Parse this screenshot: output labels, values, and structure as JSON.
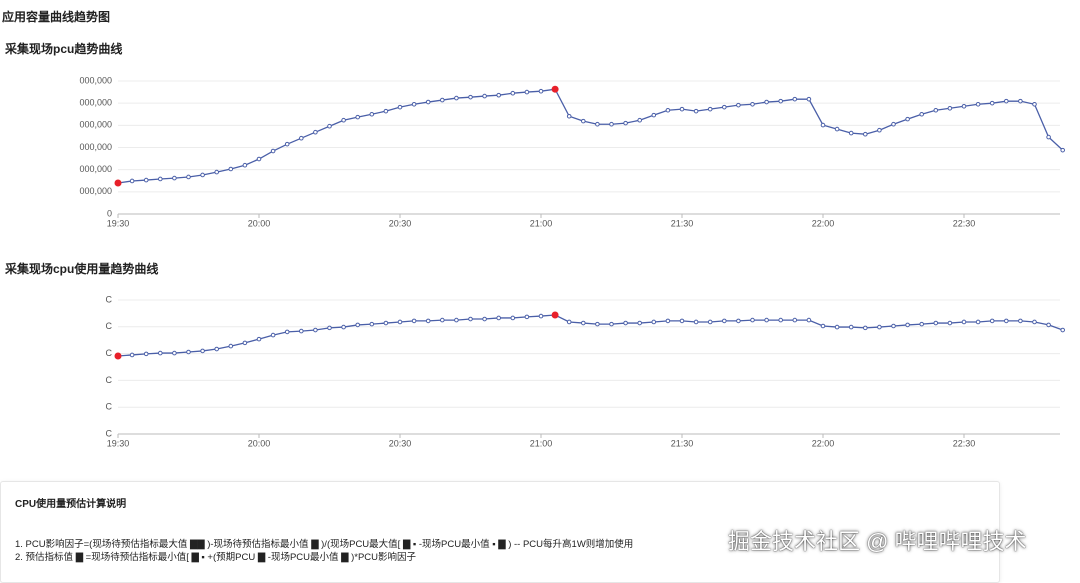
{
  "page_title": "应用容量曲线趋势图",
  "chart_data": [
    {
      "type": "line",
      "title": "采集现场pcu趋势曲线",
      "color": "#4a5fa8",
      "highlight_color": "#e8202a",
      "highlights": [
        0,
        31
      ],
      "grid": true,
      "categories": [
        "19:30",
        null,
        null,
        null,
        null,
        null,
        null,
        null,
        null,
        null,
        "20:00",
        null,
        null,
        null,
        null,
        null,
        null,
        null,
        null,
        null,
        "20:30",
        null,
        null,
        null,
        null,
        null,
        null,
        null,
        null,
        null,
        "21:00",
        null,
        null,
        null,
        null,
        null,
        null,
        null,
        null,
        null,
        "21:30",
        null,
        null,
        null,
        null,
        null,
        null,
        null,
        null,
        null,
        "22:00",
        null,
        null,
        null,
        null,
        null,
        null,
        null,
        null,
        null,
        "22:30",
        null,
        null,
        null,
        null,
        null,
        null,
        null
      ],
      "series": [
        {
          "values": [
            1.4,
            1.49,
            1.53,
            1.58,
            1.62,
            1.67,
            1.76,
            1.89,
            2.03,
            2.2,
            2.48,
            2.84,
            3.15,
            3.42,
            3.69,
            3.96,
            4.23,
            4.37,
            4.5,
            4.64,
            4.82,
            4.95,
            5.05,
            5.14,
            5.23,
            5.27,
            5.32,
            5.36,
            5.45,
            5.5,
            5.54,
            5.63,
            4.41,
            4.19,
            4.05,
            4.05,
            4.1,
            4.23,
            4.46,
            4.68,
            4.73,
            4.64,
            4.73,
            4.82,
            4.91,
            4.95,
            5.05,
            5.09,
            5.18,
            5.18,
            4.01,
            3.83,
            3.65,
            3.6,
            3.78,
            4.05,
            4.28,
            4.5,
            4.68,
            4.77,
            4.86,
            4.95,
            5.0,
            5.09,
            5.09,
            4.95,
            3.47,
            2.88
          ]
        }
      ],
      "ylim": [
        0,
        6
      ],
      "yticks": [
        0,
        {
          "value": 1,
          "label": "000,000"
        },
        {
          "value": 2,
          "label": "000,000"
        },
        {
          "value": 3,
          "label": "000,000"
        },
        {
          "value": 4,
          "label": "000,000"
        },
        {
          "value": 5,
          "label": "000,000"
        },
        {
          "value": 6,
          "label": "000,000"
        }
      ]
    },
    {
      "type": "line",
      "title": "采集现场cpu使用量趋势曲线",
      "color": "#4a5fa8",
      "highlight_color": "#e8202a",
      "highlights": [
        0,
        31
      ],
      "grid": true,
      "categories": [
        "19:30",
        null,
        null,
        null,
        null,
        null,
        null,
        null,
        null,
        null,
        "20:00",
        null,
        null,
        null,
        null,
        null,
        null,
        null,
        null,
        null,
        "20:30",
        null,
        null,
        null,
        null,
        null,
        null,
        null,
        null,
        null,
        "21:00",
        null,
        null,
        null,
        null,
        null,
        null,
        null,
        null,
        null,
        "21:30",
        null,
        null,
        null,
        null,
        null,
        null,
        null,
        null,
        null,
        "22:00",
        null,
        null,
        null,
        null,
        null,
        null,
        null,
        null,
        null,
        "22:30",
        null,
        null,
        null,
        null,
        null,
        null,
        null
      ],
      "series": [
        {
          "values": [
            2.91,
            2.95,
            2.99,
            3.02,
            3.02,
            3.06,
            3.1,
            3.17,
            3.28,
            3.4,
            3.54,
            3.69,
            3.81,
            3.84,
            3.88,
            3.96,
            3.99,
            4.07,
            4.1,
            4.14,
            4.18,
            4.22,
            4.22,
            4.25,
            4.25,
            4.29,
            4.29,
            4.33,
            4.33,
            4.37,
            4.4,
            4.44,
            4.18,
            4.14,
            4.1,
            4.1,
            4.14,
            4.14,
            4.18,
            4.22,
            4.22,
            4.18,
            4.18,
            4.22,
            4.22,
            4.25,
            4.25,
            4.25,
            4.25,
            4.25,
            4.03,
            3.99,
            3.99,
            3.96,
            3.99,
            4.03,
            4.07,
            4.1,
            4.14,
            4.14,
            4.18,
            4.18,
            4.22,
            4.22,
            4.22,
            4.18,
            4.07,
            3.88
          ]
        }
      ],
      "ylim": [
        0,
        5
      ],
      "yticks": [
        {
          "value": 0,
          "label": "C"
        },
        {
          "value": 1,
          "label": "C"
        },
        {
          "value": 2,
          "label": "C"
        },
        {
          "value": 3,
          "label": "C"
        },
        {
          "value": 4,
          "label": "C"
        },
        {
          "value": 5,
          "label": "C"
        }
      ]
    }
  ],
  "note": {
    "title": "CPU使用量预估计算说明",
    "lines": [
      "1. PCU影响因子=(现场待预估指标最大值 ▇▇ )-现场待预估指标最小值 ▇ )/(现场PCU最大值[ ▇ ▪ -现场PCU最小值 ▪ ▇ ) -- PCU每升高1W则增加使用",
      "2. 预估指标值 ▇ =现场待预估指标最小值[ ▇ ▪ +(预期PCU ▇ -现场PCU最小值 ▇ )*PCU影响因子"
    ]
  },
  "watermark": "掘金技术社区 @ 哔哩哔哩技术"
}
